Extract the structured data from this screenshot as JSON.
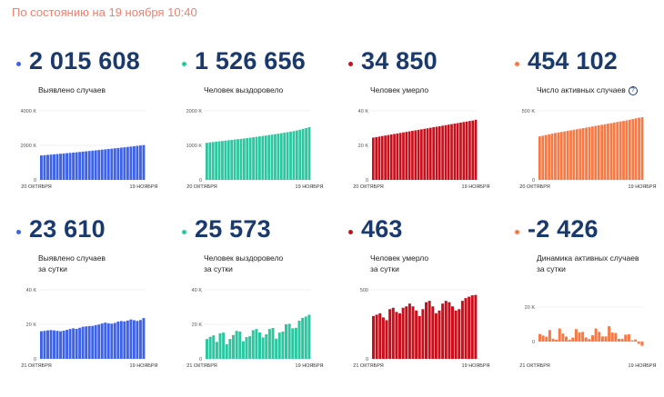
{
  "header": {
    "status_text": "По состоянию на 19 ноября 10:40"
  },
  "cards": [
    {
      "value": "2 015 608",
      "label_lines": [
        "Выявлено случаев"
      ],
      "color": "#3e63e6",
      "chart_data": {
        "type": "bar",
        "y_ticks": [
          "4000 K",
          "2000 K",
          "0"
        ],
        "x_start": "20 ОКТЯБРЯ",
        "x_end": "19 НОЯБРЯ",
        "ylim": [
          0,
          4000000
        ],
        "values": [
          1416000,
          1432000,
          1448000,
          1464000,
          1481000,
          1497000,
          1514000,
          1531000,
          1547000,
          1564000,
          1581000,
          1599000,
          1617000,
          1636000,
          1655000,
          1674000,
          1693000,
          1712000,
          1731000,
          1751000,
          1770000,
          1790000,
          1810000,
          1829000,
          1849000,
          1869000,
          1889000,
          1909000,
          1930000,
          1951000,
          1972000,
          1993000,
          2015608
        ]
      }
    },
    {
      "value": "1 526 656",
      "label_lines": [
        "Человек выздоровело"
      ],
      "color": "#2cc7a0",
      "chart_data": {
        "type": "bar",
        "y_ticks": [
          "2000 K",
          "1000 K",
          "0"
        ],
        "x_start": "20 ОКТЯБРЯ",
        "x_end": "19 НОЯБРЯ",
        "ylim": [
          0,
          2000000
        ],
        "values": [
          1074000,
          1086000,
          1097000,
          1107000,
          1117000,
          1127000,
          1137000,
          1148000,
          1159000,
          1169000,
          1179000,
          1189000,
          1199000,
          1210000,
          1222000,
          1234000,
          1246000,
          1259000,
          1272000,
          1285000,
          1298000,
          1311000,
          1324000,
          1338000,
          1352000,
          1366000,
          1381000,
          1396000,
          1413000,
          1432000,
          1454000,
          1478000,
          1502000,
          1526656
        ]
      }
    },
    {
      "value": "34 850",
      "label_lines": [
        "Человек умерло"
      ],
      "color": "#c8101c",
      "chart_data": {
        "type": "bar",
        "y_ticks": [
          "40 K",
          "20 K",
          "0"
        ],
        "x_start": "20 ОКТЯБРЯ",
        "x_end": "19 НОЯБРЯ",
        "ylim": [
          0,
          40000
        ],
        "values": [
          24500,
          24800,
          25100,
          25400,
          25700,
          26000,
          26300,
          26600,
          26900,
          27200,
          27500,
          27800,
          28100,
          28400,
          28700,
          29000,
          29300,
          29600,
          29900,
          30200,
          30500,
          30800,
          31100,
          31400,
          31700,
          32000,
          32300,
          32600,
          32900,
          33200,
          33500,
          33800,
          34100,
          34400,
          34850
        ]
      }
    },
    {
      "value": "454 102",
      "label_lines": [
        "Число активных случаев"
      ],
      "has_help": true,
      "help_glyph": "?",
      "color": "#f57a46",
      "chart_data": {
        "type": "bar",
        "y_ticks": [
          "500 K",
          "0"
        ],
        "x_start": "20 ОКТЯБРЯ",
        "x_end": "19 НОЯБРЯ",
        "ylim": [
          0,
          500000
        ],
        "values": [
          315000,
          320000,
          325000,
          330000,
          335000,
          340000,
          343000,
          347000,
          351000,
          355000,
          359000,
          363000,
          367000,
          371000,
          375000,
          379000,
          383000,
          387000,
          391000,
          395000,
          399000,
          403000,
          407000,
          411000,
          415000,
          419000,
          423000,
          427000,
          431000,
          436000,
          441000,
          446000,
          450000,
          454102
        ]
      }
    },
    {
      "value": "23 610",
      "label_lines": [
        "Выявлено случаев",
        "за сутки"
      ],
      "color": "#3e63e6",
      "chart_data": {
        "type": "bar",
        "y_ticks": [
          "40 K",
          "20 K",
          "0"
        ],
        "x_start": "21 ОКТЯБРЯ",
        "x_end": "19 НОЯБРЯ",
        "ylim": [
          0,
          40000
        ],
        "values": [
          16000,
          16200,
          16500,
          16700,
          16500,
          16200,
          16000,
          16300,
          16800,
          17300,
          17700,
          17400,
          18000,
          18600,
          18800,
          19000,
          19100,
          19500,
          19900,
          20500,
          21000,
          20600,
          20400,
          20800,
          21600,
          21900,
          21700,
          22200,
          22800,
          22400,
          22000,
          22500,
          23610
        ]
      }
    },
    {
      "value": "25 573",
      "label_lines": [
        "Человек выздоровело",
        "за сутки"
      ],
      "color": "#2cc7a0",
      "chart_data": {
        "type": "bar",
        "y_ticks": [
          "40 K",
          "20 K",
          "0"
        ],
        "x_start": "21 ОКТЯБРЯ",
        "x_end": "19 НОЯБРЯ",
        "ylim": [
          0,
          40000
        ],
        "values": [
          11500,
          12800,
          13600,
          9800,
          14800,
          15200,
          8500,
          11500,
          13800,
          16200,
          15800,
          10200,
          12600,
          13100,
          16600,
          17300,
          15300,
          12400,
          14200,
          17300,
          17900,
          11700,
          15200,
          15800,
          20000,
          20300,
          17700,
          18000,
          22100,
          23700,
          24500,
          25573
        ]
      }
    },
    {
      "value": "463",
      "label_lines": [
        "Человек умерло",
        "за сутки"
      ],
      "color": "#c8101c",
      "chart_data": {
        "type": "bar",
        "y_ticks": [
          "500",
          "0"
        ],
        "x_start": "21 ОКТЯБРЯ",
        "x_end": "19 НОЯБРЯ",
        "ylim": [
          0,
          500
        ],
        "values": [
          310,
          320,
          330,
          300,
          280,
          360,
          370,
          340,
          330,
          370,
          380,
          400,
          380,
          350,
          310,
          360,
          410,
          420,
          380,
          330,
          350,
          400,
          420,
          410,
          380,
          350,
          360,
          420,
          440,
          450,
          460,
          463
        ]
      }
    },
    {
      "value": "-2 426",
      "label_lines": [
        "Динамика активных случаев",
        "за сутки"
      ],
      "color": "#f57a46",
      "chart_data": {
        "type": "bar",
        "y_ticks": [
          "20 K",
          "0"
        ],
        "x_start": "21 ОКТЯБРЯ",
        "x_end": "19 НОЯБРЯ",
        "ylim": [
          -10000,
          30000
        ],
        "values": [
          4400,
          3500,
          2800,
          6700,
          1700,
          1100,
          7600,
          4700,
          2900,
          1100,
          2300,
          7200,
          5300,
          5600,
          2400,
          1500,
          3700,
          7600,
          5600,
          3000,
          3000,
          8900,
          5200,
          5000,
          1600,
          1600,
          4000,
          4200,
          700,
          1200,
          -1300,
          -2426
        ]
      }
    }
  ]
}
